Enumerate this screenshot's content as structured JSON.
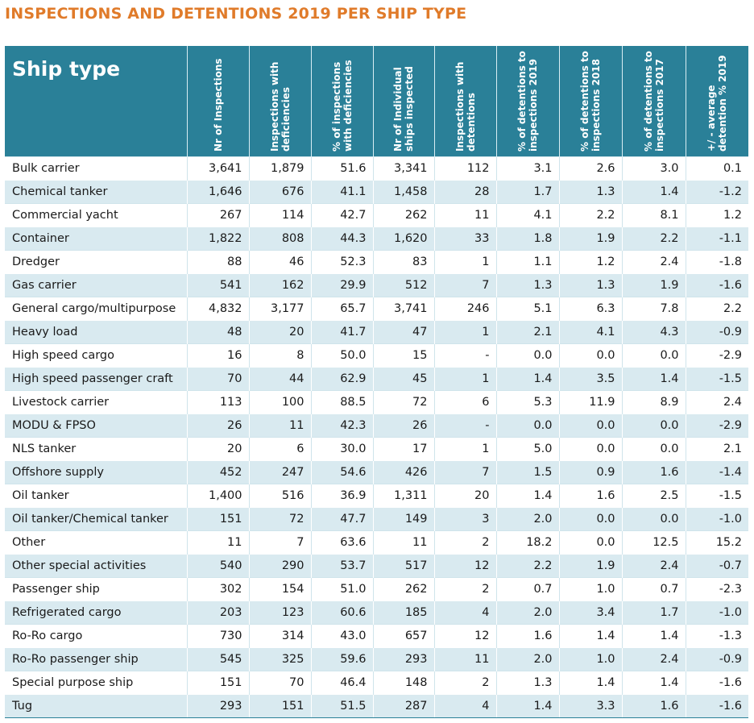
{
  "title": "INSPECTIONS AND DETENTIONS 2019 PER SHIP TYPE",
  "header": {
    "ship_type": "Ship type",
    "columns": [
      "Nr of Inspections",
      "Inspections with deficiencies",
      "% of inspections with deficiencies",
      "Nr of Individual ships inspected",
      "Inspections with detentions",
      "% of detentions to inspections 2019",
      "% of detentions to inspections 2018",
      "% of detentions to inspections 2017",
      "+/ - average detention % 2019"
    ]
  },
  "rows": [
    {
      "name": "Bulk carrier",
      "v": [
        "3,641",
        "1,879",
        "51.6",
        "3,341",
        "112",
        "3.1",
        "2.6",
        "3.0",
        "0.1"
      ]
    },
    {
      "name": "Chemical tanker",
      "v": [
        "1,646",
        "676",
        "41.1",
        "1,458",
        "28",
        "1.7",
        "1.3",
        "1.4",
        "-1.2"
      ]
    },
    {
      "name": "Commercial yacht",
      "v": [
        "267",
        "114",
        "42.7",
        "262",
        "11",
        "4.1",
        "2.2",
        "8.1",
        "1.2"
      ]
    },
    {
      "name": "Container",
      "v": [
        "1,822",
        "808",
        "44.3",
        "1,620",
        "33",
        "1.8",
        "1.9",
        "2.2",
        "-1.1"
      ]
    },
    {
      "name": "Dredger",
      "v": [
        "88",
        "46",
        "52.3",
        "83",
        "1",
        "1.1",
        "1.2",
        "2.4",
        "-1.8"
      ]
    },
    {
      "name": "Gas carrier",
      "v": [
        "541",
        "162",
        "29.9",
        "512",
        "7",
        "1.3",
        "1.3",
        "1.9",
        "-1.6"
      ]
    },
    {
      "name": "General cargo/multipurpose",
      "v": [
        "4,832",
        "3,177",
        "65.7",
        "3,741",
        "246",
        "5.1",
        "6.3",
        "7.8",
        "2.2"
      ]
    },
    {
      "name": "Heavy load",
      "v": [
        "48",
        "20",
        "41.7",
        "47",
        "1",
        "2.1",
        "4.1",
        "4.3",
        "-0.9"
      ]
    },
    {
      "name": "High speed cargo",
      "v": [
        "16",
        "8",
        "50.0",
        "15",
        "-",
        "0.0",
        "0.0",
        "0.0",
        "-2.9"
      ]
    },
    {
      "name": "High speed passenger craft",
      "v": [
        "70",
        "44",
        "62.9",
        "45",
        "1",
        "1.4",
        "3.5",
        "1.4",
        "-1.5"
      ]
    },
    {
      "name": "Livestock carrier",
      "v": [
        "113",
        "100",
        "88.5",
        "72",
        "6",
        "5.3",
        "11.9",
        "8.9",
        "2.4"
      ]
    },
    {
      "name": "MODU & FPSO",
      "v": [
        "26",
        "11",
        "42.3",
        "26",
        "-",
        "0.0",
        "0.0",
        "0.0",
        "-2.9"
      ]
    },
    {
      "name": "NLS tanker",
      "v": [
        "20",
        "6",
        "30.0",
        "17",
        "1",
        "5.0",
        "0.0",
        "0.0",
        "2.1"
      ]
    },
    {
      "name": "Offshore supply",
      "v": [
        "452",
        "247",
        "54.6",
        "426",
        "7",
        "1.5",
        "0.9",
        "1.6",
        "-1.4"
      ]
    },
    {
      "name": "Oil tanker",
      "v": [
        "1,400",
        "516",
        "36.9",
        "1,311",
        "20",
        "1.4",
        "1.6",
        "2.5",
        "-1.5"
      ]
    },
    {
      "name": "Oil tanker/Chemical tanker",
      "v": [
        "151",
        "72",
        "47.7",
        "149",
        "3",
        "2.0",
        "0.0",
        "0.0",
        "-1.0"
      ]
    },
    {
      "name": "Other",
      "v": [
        "11",
        "7",
        "63.6",
        "11",
        "2",
        "18.2",
        "0.0",
        "12.5",
        "15.2"
      ]
    },
    {
      "name": "Other special activities",
      "v": [
        "540",
        "290",
        "53.7",
        "517",
        "12",
        "2.2",
        "1.9",
        "2.4",
        "-0.7"
      ]
    },
    {
      "name": "Passenger ship",
      "v": [
        "302",
        "154",
        "51.0",
        "262",
        "2",
        "0.7",
        "1.0",
        "0.7",
        "-2.3"
      ]
    },
    {
      "name": "Refrigerated cargo",
      "v": [
        "203",
        "123",
        "60.6",
        "185",
        "4",
        "2.0",
        "3.4",
        "1.7",
        "-1.0"
      ]
    },
    {
      "name": "Ro-Ro cargo",
      "v": [
        "730",
        "314",
        "43.0",
        "657",
        "12",
        "1.6",
        "1.4",
        "1.4",
        "-1.3"
      ]
    },
    {
      "name": "Ro-Ro passenger ship",
      "v": [
        "545",
        "325",
        "59.6",
        "293",
        "11",
        "2.0",
        "1.0",
        "2.4",
        "-0.9"
      ]
    },
    {
      "name": "Special purpose ship",
      "v": [
        "151",
        "70",
        "46.4",
        "148",
        "2",
        "1.3",
        "1.4",
        "1.4",
        "-1.6"
      ]
    },
    {
      "name": "Tug",
      "v": [
        "293",
        "151",
        "51.5",
        "287",
        "4",
        "1.4",
        "3.3",
        "1.6",
        "-1.6"
      ]
    }
  ],
  "colors": {
    "title": "#e07b2a",
    "header_bg": "#2a8098",
    "stripe": "#d9eaf0"
  }
}
